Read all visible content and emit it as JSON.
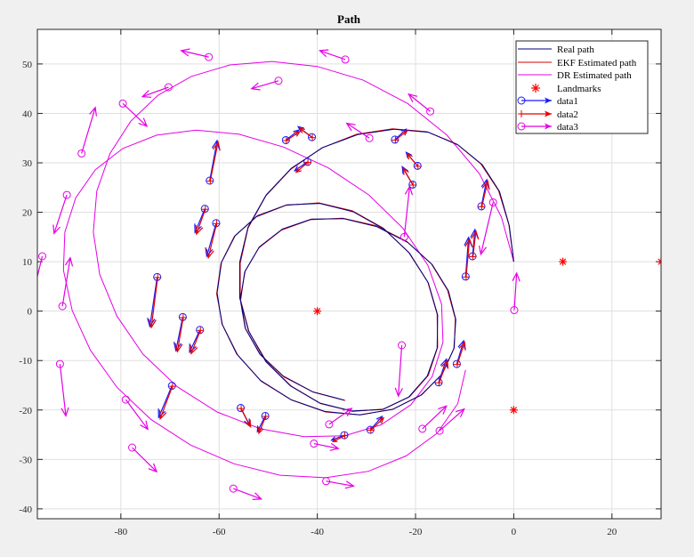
{
  "chart_data": {
    "type": "line",
    "title": "Path",
    "xlabel": "",
    "ylabel": "",
    "xlim": [
      -97,
      30
    ],
    "ylim": [
      -42,
      57
    ],
    "xticks": [
      -80,
      -60,
      -40,
      -20,
      0,
      20
    ],
    "yticks": [
      -40,
      -30,
      -20,
      -10,
      0,
      10,
      20,
      30,
      40,
      50
    ],
    "grid": true,
    "legend_position": "top-right",
    "landmarks": {
      "name": "Landmarks",
      "color": "#ff0000",
      "x": [
        -40,
        10,
        30,
        0
      ],
      "y": [
        0,
        10,
        10,
        -20
      ]
    },
    "series": [
      {
        "name": "Real path",
        "color": "#000080",
        "x": [
          0,
          -0.9,
          -2.9,
          -6.4,
          -11.3,
          -17.4,
          -24.4,
          -31.8,
          -38.9,
          -45.3,
          -50.4,
          -54.1,
          -55.8,
          -55.8,
          -54.0,
          -50.5,
          -45.5,
          -39.5,
          -33.0,
          -26.7,
          -21.4,
          -17.6,
          -15.6,
          -15.5,
          -17.4,
          -21.2,
          -26.4,
          -32.7,
          -39.5,
          -46.2,
          -52.2,
          -56.7,
          -59.5,
          -60.4,
          -59.4,
          -56.4,
          -51.6,
          -45.4,
          -38.5,
          -31.4,
          -24.7,
          -18.9,
          -14.6,
          -12.2,
          -11.8,
          -13.3,
          -16.6,
          -21.6,
          -27.9,
          -34.6,
          -41.2,
          -47.1,
          -51.8,
          -54.7,
          -55.7,
          -54.7,
          -51.7,
          -47.0,
          -41.0,
          -34.5
        ],
        "y": [
          10,
          17.3,
          24.2,
          29.6,
          33.6,
          36.2,
          36.8,
          35.7,
          33.1,
          28.9,
          23.5,
          17.0,
          9.9,
          2.7,
          -4.0,
          -10.2,
          -15.1,
          -18.6,
          -20.2,
          -19.9,
          -17.4,
          -13.1,
          -7.5,
          -0.8,
          5.7,
          11.7,
          16.6,
          20.1,
          21.8,
          21.5,
          19.3,
          15.3,
          9.9,
          3.7,
          -2.6,
          -8.7,
          -14.0,
          -17.9,
          -20.3,
          -21.0,
          -19.9,
          -17.0,
          -12.8,
          -7.6,
          -1.7,
          4.1,
          9.4,
          13.9,
          17.1,
          18.7,
          18.6,
          16.6,
          13.0,
          8.1,
          2.4,
          -3.4,
          -8.7,
          -13.1,
          -16.3,
          -18.0
        ]
      },
      {
        "name": "EKF Estimated path",
        "color": "#d40000",
        "x": [
          0,
          -1.0,
          -3.1,
          -6.7,
          -11.6,
          -17.7,
          -24.7,
          -32.0,
          -39.1,
          -45.4,
          -50.5,
          -54.1,
          -55.7,
          -55.7,
          -53.9,
          -50.3,
          -45.3,
          -39.3,
          -32.8,
          -26.5,
          -21.2,
          -17.4,
          -15.5,
          -15.6,
          -17.5,
          -21.4,
          -26.6,
          -32.9,
          -39.7,
          -46.4,
          -52.4,
          -56.9,
          -59.6,
          -60.5,
          -59.3,
          -56.2,
          -51.4,
          -45.2,
          -38.3,
          -31.2,
          -24.5,
          -18.7,
          -14.5,
          -12.1,
          -11.9,
          -13.5,
          -16.8,
          -21.8,
          -28.1,
          -34.8,
          -41.4,
          -47.3,
          -51.9,
          -54.8,
          -55.6,
          -54.6,
          -51.5,
          -46.8,
          -40.8,
          -34.3
        ],
        "y": [
          10,
          17.5,
          24.4,
          29.8,
          33.8,
          36.3,
          36.9,
          35.8,
          33.0,
          28.7,
          23.3,
          16.8,
          9.7,
          2.5,
          -4.2,
          -10.3,
          -15.2,
          -18.7,
          -20.3,
          -19.8,
          -17.3,
          -13.0,
          -7.3,
          -0.6,
          5.9,
          11.9,
          16.8,
          20.3,
          21.9,
          21.4,
          19.1,
          15.1,
          9.7,
          3.5,
          -2.8,
          -8.9,
          -14.2,
          -18.0,
          -20.4,
          -21.0,
          -19.8,
          -16.9,
          -12.6,
          -7.4,
          -1.5,
          4.3,
          9.6,
          14.1,
          17.3,
          18.8,
          18.5,
          16.4,
          12.8,
          7.9,
          2.2,
          -3.6,
          -8.9,
          -13.3,
          -16.4,
          -18.1
        ]
      },
      {
        "name": "DR Estimated path",
        "color": "#e600e6",
        "x": [
          0,
          -2.5,
          -7.0,
          -13.6,
          -21.6,
          -30.6,
          -40.0,
          -49.2,
          -57.8,
          -65.6,
          -72.4,
          -78.0,
          -82.2,
          -84.9,
          -85.6,
          -84.3,
          -80.8,
          -75.5,
          -68.5,
          -60.4,
          -51.6,
          -42.7,
          -34.4,
          -27.0,
          -20.9,
          -16.6,
          -14.4,
          -14.7,
          -17.5,
          -22.6,
          -29.5,
          -37.8,
          -46.9,
          -56.0,
          -64.7,
          -72.7,
          -79.6,
          -85.2,
          -89.2,
          -91.4,
          -91.7,
          -89.9,
          -86.2,
          -80.8,
          -73.9,
          -65.8,
          -56.9,
          -47.6,
          -38.3,
          -29.6,
          -21.9,
          -15.6,
          -11.4,
          -9.8
        ],
        "y": [
          10,
          19.0,
          27.8,
          35.6,
          42.0,
          46.7,
          49.5,
          50.5,
          49.8,
          47.5,
          43.7,
          38.4,
          31.9,
          24.3,
          16.0,
          7.4,
          -1.0,
          -8.7,
          -15.3,
          -20.4,
          -23.8,
          -25.4,
          -25.2,
          -23.0,
          -18.9,
          -13.2,
          -6.3,
          1.4,
          9.3,
          16.8,
          23.5,
          29.0,
          33.2,
          35.8,
          36.6,
          35.6,
          32.9,
          28.6,
          22.9,
          16.0,
          8.3,
          0.1,
          -7.9,
          -15.4,
          -21.9,
          -27.1,
          -30.9,
          -33.2,
          -33.7,
          -32.4,
          -29.3,
          -24.7,
          -18.7,
          -11.9
        ]
      }
    ],
    "legend_entries": [
      "Real path",
      "EKF Estimated path",
      "DR Estimated path",
      "Landmarks",
      "data1",
      "data2",
      "data3"
    ],
    "data1": {
      "name": "data1",
      "color": "#1a1aff",
      "x": [
        -72.6,
        -69.6,
        -67.4,
        -63.9,
        -62.9,
        -61.9,
        -60.6,
        -55.6,
        -50.6,
        -46.4,
        -42.0,
        -41.1,
        -34.5,
        -29.2,
        -24.2,
        -20.6,
        -19.6,
        -15.3,
        -11.6,
        -9.8,
        -8.4,
        -6.6
      ],
      "y": [
        6.9,
        -15.1,
        -1.2,
        -3.8,
        20.7,
        26.4,
        17.8,
        -19.6,
        -21.2,
        34.6,
        30.2,
        35.2,
        -25.1,
        -24.0,
        34.7,
        25.6,
        29.4,
        -14.4,
        -10.7,
        7.0,
        11.1,
        21.2
      ],
      "dx": [
        -1.5,
        -2.7,
        -1.4,
        -2.1,
        -2.0,
        1.5,
        -1.9,
        1.8,
        -1.6,
        2.6,
        -2.6,
        -2.8,
        -2.6,
        2.4,
        2.3,
        -2.1,
        -2.3,
        1.6,
        1.4,
        0.6,
        0.5,
        1.1
      ],
      "dy": [
        -10.0,
        -6.4,
        -6.8,
        -4.5,
        -4.8,
        8.1,
        -6.7,
        -3.5,
        -3.2,
        2.0,
        -1.8,
        2.1,
        -1.0,
        2.7,
        2.1,
        3.6,
        2.7,
        4.7,
        4.7,
        7.9,
        5.4,
        5.4
      ]
    },
    "data2": {
      "name": "data2",
      "color": "#e60000",
      "x": [
        -72.5,
        -69.5,
        -67.3,
        -63.8,
        -62.8,
        -61.8,
        -60.5,
        -55.5,
        -50.5,
        -46.3,
        -41.9,
        -41.0,
        -34.4,
        -29.1,
        -24.1,
        -20.5,
        -19.5,
        -15.2,
        -11.5,
        -9.7,
        -8.3,
        -6.5
      ],
      "y": [
        6.8,
        -15.2,
        -1.3,
        -3.9,
        20.6,
        26.3,
        17.7,
        -19.7,
        -21.3,
        34.5,
        30.1,
        35.1,
        -25.2,
        -24.1,
        34.6,
        25.5,
        29.3,
        -14.5,
        -10.8,
        6.9,
        11.0,
        21.1
      ],
      "dx": [
        -1.3,
        -2.5,
        -1.2,
        -1.9,
        -1.8,
        1.6,
        -1.7,
        1.9,
        -1.4,
        2.7,
        -2.4,
        -2.6,
        -2.4,
        2.6,
        2.4,
        -2.0,
        -2.2,
        1.7,
        1.5,
        0.7,
        0.6,
        1.2
      ],
      "dy": [
        -10.1,
        -6.6,
        -6.9,
        -4.7,
        -5.0,
        7.9,
        -6.9,
        -3.7,
        -3.4,
        1.8,
        -2.0,
        1.9,
        -1.2,
        2.5,
        1.9,
        3.4,
        2.5,
        4.5,
        4.5,
        7.7,
        5.2,
        5.2
      ]
    },
    "data3": {
      "name": "data3",
      "color": "#e600e6",
      "x": [
        -96.0,
        -92.4,
        -91.9,
        -91.0,
        -88.0,
        -79.6,
        -79.0,
        -77.7,
        -70.3,
        -62.1,
        -57.1,
        -47.9,
        -40.7,
        -38.2,
        -37.6,
        -34.3,
        -29.4,
        -22.8,
        -22.3,
        -18.6,
        -17.0,
        -15.1,
        -4.2,
        0.1
      ],
      "y": [
        11.1,
        -10.7,
        1.0,
        23.5,
        31.9,
        42.0,
        -17.9,
        -27.6,
        45.3,
        51.4,
        -35.9,
        46.6,
        -26.8,
        -34.4,
        -22.9,
        50.9,
        35.0,
        -6.9,
        15.0,
        -23.8,
        40.4,
        -24.2,
        22.0,
        0.2
      ],
      "dx": [
        -2.5,
        1.2,
        1.6,
        -2.6,
        2.8,
        4.9,
        4.5,
        5.0,
        -5.3,
        -5.6,
        5.7,
        -5.5,
        5.0,
        5.6,
        4.6,
        -5.2,
        -4.6,
        -0.7,
        1.1,
        4.9,
        -4.4,
        5.0,
        -2.5,
        0.5
      ],
      "dy": [
        -10.2,
        -10.5,
        9.8,
        -7.8,
        9.3,
        -4.6,
        -6.0,
        -4.9,
        -1.9,
        1.3,
        -2.1,
        -1.6,
        -1.0,
        -1.0,
        3.2,
        1.8,
        3.0,
        -10.3,
        10.2,
        4.6,
        3.5,
        4.4,
        -10.5,
        7.5
      ]
    }
  }
}
